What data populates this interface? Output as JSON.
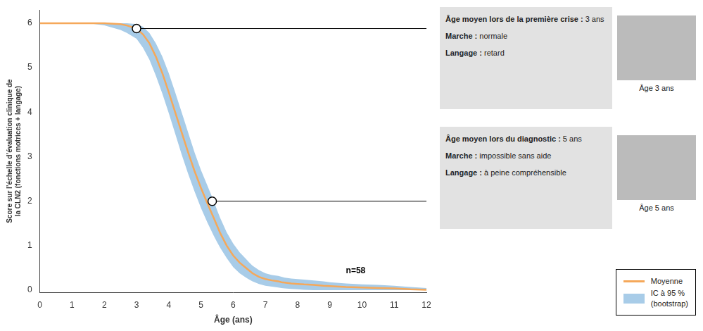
{
  "chart_data": {
    "type": "line",
    "xlabel": "Âge (ans)",
    "ylabel": "Score sur l’échelle d’évaluation clinique de\nla CLN2 (fonctions motrices + langage)",
    "xlim": [
      0,
      12
    ],
    "ylim": [
      -0.05,
      6.3
    ],
    "xticks": [
      0,
      1,
      2,
      3,
      4,
      5,
      6,
      7,
      8,
      9,
      10,
      11,
      12
    ],
    "yticks": [
      0,
      1,
      2,
      3,
      4,
      5,
      6
    ],
    "grid": false,
    "legend": "lower right",
    "x": [
      0.0,
      0.5,
      1.0,
      1.5,
      2.0,
      2.5,
      2.7,
      3.0,
      3.2,
      3.4,
      3.6,
      3.8,
      4.0,
      4.2,
      4.4,
      4.6,
      4.8,
      5.0,
      5.2,
      5.4,
      5.5,
      5.6,
      5.8,
      6.0,
      6.2,
      6.4,
      6.5,
      6.6,
      6.8,
      7.0,
      7.2,
      7.4,
      7.5,
      7.6,
      7.8,
      8.0,
      8.2,
      8.5,
      8.8,
      9.0,
      9.5,
      10.0,
      10.5,
      11.0,
      11.5,
      12.0
    ],
    "series": [
      {
        "name": "Moyenne",
        "color": "#F5A85A",
        "values": [
          6.0,
          6.0,
          6.0,
          6.0,
          6.0,
          5.98,
          5.95,
          5.88,
          5.75,
          5.55,
          5.25,
          4.88,
          4.45,
          4.0,
          3.55,
          3.1,
          2.68,
          2.3,
          1.95,
          1.62,
          1.45,
          1.28,
          1.0,
          0.78,
          0.62,
          0.5,
          0.44,
          0.38,
          0.3,
          0.25,
          0.22,
          0.2,
          0.18,
          0.17,
          0.15,
          0.14,
          0.13,
          0.12,
          0.1,
          0.09,
          0.07,
          0.06,
          0.05,
          0.04,
          0.02,
          0.01
        ]
      },
      {
        "name": "IC à 95 %\n(bootstrap)",
        "type": "area",
        "color": "#A8CCE8",
        "upper": [
          6.0,
          6.0,
          6.0,
          6.0,
          6.0,
          6.0,
          6.0,
          5.98,
          5.92,
          5.78,
          5.55,
          5.25,
          4.88,
          4.45,
          4.0,
          3.55,
          3.1,
          2.7,
          2.35,
          2.0,
          1.8,
          1.62,
          1.3,
          1.05,
          0.85,
          0.7,
          0.62,
          0.55,
          0.45,
          0.38,
          0.34,
          0.32,
          0.3,
          0.28,
          0.26,
          0.25,
          0.24,
          0.22,
          0.2,
          0.18,
          0.15,
          0.13,
          0.12,
          0.1,
          0.07,
          0.05
        ],
        "lower": [
          6.0,
          6.0,
          6.0,
          6.0,
          5.95,
          5.85,
          5.78,
          5.65,
          5.45,
          5.18,
          4.82,
          4.42,
          3.98,
          3.52,
          3.05,
          2.62,
          2.22,
          1.85,
          1.52,
          1.22,
          1.08,
          0.95,
          0.72,
          0.52,
          0.38,
          0.28,
          0.24,
          0.2,
          0.14,
          0.1,
          0.08,
          0.06,
          0.05,
          0.04,
          0.03,
          0.02,
          0.01,
          0.0,
          0.0,
          0.0,
          0.0,
          0.0,
          0.0,
          0.0,
          0.0,
          0.0
        ]
      }
    ],
    "texts": [
      {
        "x": 9.5,
        "y": 0.38,
        "text": "n=58"
      }
    ],
    "annotations": [
      {
        "x": 3.0,
        "y": 5.88,
        "marker": "circle",
        "color": "#E2E2E2",
        "lines": [
          {
            "bold": "Âge moyen lors de la première crise :",
            "text": " 3 ans"
          },
          {
            "bold": "Marche :",
            "text": " normale"
          },
          {
            "bold": "Langage :",
            "text": " retard"
          }
        ],
        "caption": "Âge 3 ans"
      },
      {
        "x": 5.35,
        "y": 2.0,
        "marker": "circle",
        "color": "#E2E2E2",
        "lines": [
          {
            "bold": "Âge moyen lors du diagnostic :",
            "text": " 5 ans"
          },
          {
            "bold": "Marche :",
            "text": " impossible sans aide"
          },
          {
            "bold": "Langage :",
            "text": " à peine compréhensible"
          }
        ],
        "caption": "Âge 5 ans"
      }
    ]
  }
}
